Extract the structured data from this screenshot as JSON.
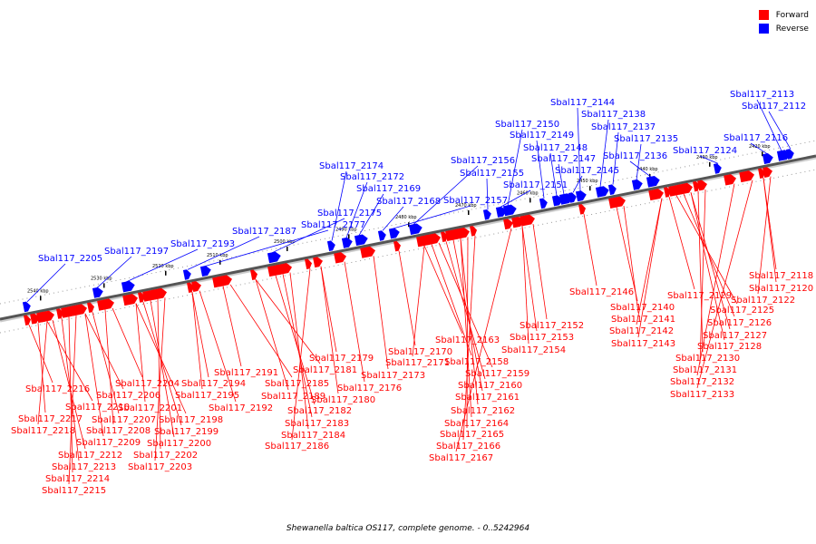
{
  "caption": "Shewanella baltica OS117, complete genome. - 0..5242964",
  "legend": [
    {
      "label": "Forward",
      "color": "#ff0000"
    },
    {
      "label": "Reverse",
      "color": "#0000ff"
    }
  ],
  "colors": {
    "forward": "#ff0000",
    "reverse": "#0000ff",
    "backbone": "#555555"
  },
  "ticks": [
    "2540 kbp",
    "2530 kbp",
    "2520 kbp",
    "2510 kbp",
    "2500 kbp",
    "2490 kbp",
    "2480 kbp",
    "2470 kbp",
    "2460 kbp",
    "2450 kbp",
    "2440 kbp",
    "2430 kbp",
    "2420 kbp"
  ],
  "reverse_labels": [
    "Sbal117_2205",
    "Sbal117_2197",
    "Sbal117_2193",
    "Sbal117_2187",
    "Sbal117_2177",
    "Sbal117_2175",
    "Sbal117_2174",
    "Sbal117_2172",
    "Sbal117_2169",
    "Sbal117_2168",
    "Sbal117_2157",
    "Sbal117_2156",
    "Sbal117_2155",
    "Sbal117_2151",
    "Sbal117_2150",
    "Sbal117_2149",
    "Sbal117_2148",
    "Sbal117_2147",
    "Sbal117_2145",
    "Sbal117_2144",
    "Sbal117_2138",
    "Sbal117_2137",
    "Sbal117_2135",
    "Sbal117_2136",
    "Sbal117_2124",
    "Sbal117_2116",
    "Sbal117_2113",
    "Sbal117_2112"
  ],
  "forward_labels": [
    "Sbal117_2216",
    "Sbal117_2217",
    "Sbal117_2218",
    "Sbal117_2210",
    "Sbal117_2212",
    "Sbal117_2213",
    "Sbal117_2214",
    "Sbal117_2215",
    "Sbal117_2209",
    "Sbal117_2206",
    "Sbal117_2207",
    "Sbal117_2208",
    "Sbal117_2204",
    "Sbal117_2201",
    "Sbal117_2198",
    "Sbal117_2199",
    "Sbal117_2200",
    "Sbal117_2202",
    "Sbal117_2203",
    "Sbal117_2194",
    "Sbal117_2195",
    "Sbal117_2192",
    "Sbal117_2191",
    "Sbal117_2185",
    "Sbal117_2189",
    "Sbal117_2181",
    "Sbal117_2182",
    "Sbal117_2183",
    "Sbal117_2184",
    "Sbal117_2186",
    "Sbal117_2179",
    "Sbal117_2180",
    "Sbal117_2176",
    "Sbal117_2173",
    "Sbal117_2170",
    "Sbal117_2171",
    "Sbal117_2163",
    "Sbal117_2158",
    "Sbal117_2159",
    "Sbal117_2160",
    "Sbal117_2161",
    "Sbal117_2162",
    "Sbal117_2164",
    "Sbal117_2165",
    "Sbal117_2166",
    "Sbal117_2167",
    "Sbal117_2154",
    "Sbal117_2153",
    "Sbal117_2152",
    "Sbal117_2146",
    "Sbal117_2140",
    "Sbal117_2141",
    "Sbal117_2142",
    "Sbal117_2143",
    "Sbal117_2129",
    "Sbal117_2125",
    "Sbal117_2126",
    "Sbal117_2127",
    "Sbal117_2128",
    "Sbal117_2130",
    "Sbal117_2131",
    "Sbal117_2132",
    "Sbal117_2133",
    "Sbal117_2118",
    "Sbal117_2120",
    "Sbal117_2122"
  ]
}
